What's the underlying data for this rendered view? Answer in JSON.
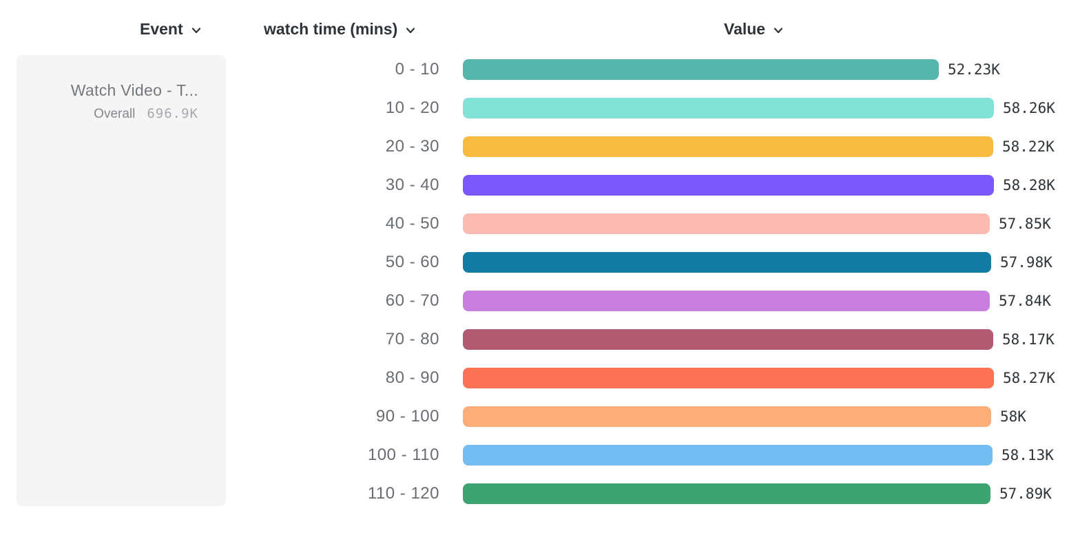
{
  "header": {
    "event_label": "Event",
    "breakdown_label": "watch time (mins)",
    "value_label": "Value"
  },
  "event_card": {
    "title": "Watch Video - T...",
    "overall_label": "Overall",
    "overall_value": "696.9K"
  },
  "chart_data": {
    "type": "bar",
    "orientation": "horizontal",
    "title": "",
    "xlabel": "Value",
    "ylabel": "watch time (mins)",
    "legend": false,
    "grid": false,
    "categories": [
      "0 - 10",
      "10 - 20",
      "20 - 30",
      "30 - 40",
      "40 - 50",
      "50 - 60",
      "60 - 70",
      "70 - 80",
      "80 - 90",
      "90 - 100",
      "100 - 110",
      "110 - 120"
    ],
    "values": [
      52230,
      58260,
      58220,
      58280,
      57850,
      57980,
      57840,
      58170,
      58270,
      58000,
      58130,
      57890
    ],
    "value_labels": [
      "52.23K",
      "58.26K",
      "58.22K",
      "58.28K",
      "57.85K",
      "57.98K",
      "57.84K",
      "58.17K",
      "58.27K",
      "58K",
      "58.13K",
      "57.89K"
    ],
    "colors": [
      "#57B6AC",
      "#81E2D5",
      "#F7BB40",
      "#7A57FA",
      "#FCBBB0",
      "#137CA2",
      "#C87FDD",
      "#B25A71",
      "#FC7257",
      "#FDAE78",
      "#74BDF2",
      "#3CA471"
    ],
    "xlim": [
      0,
      58280
    ],
    "accent_text_color": "#2d3338",
    "category_text_color": "#686d73"
  }
}
